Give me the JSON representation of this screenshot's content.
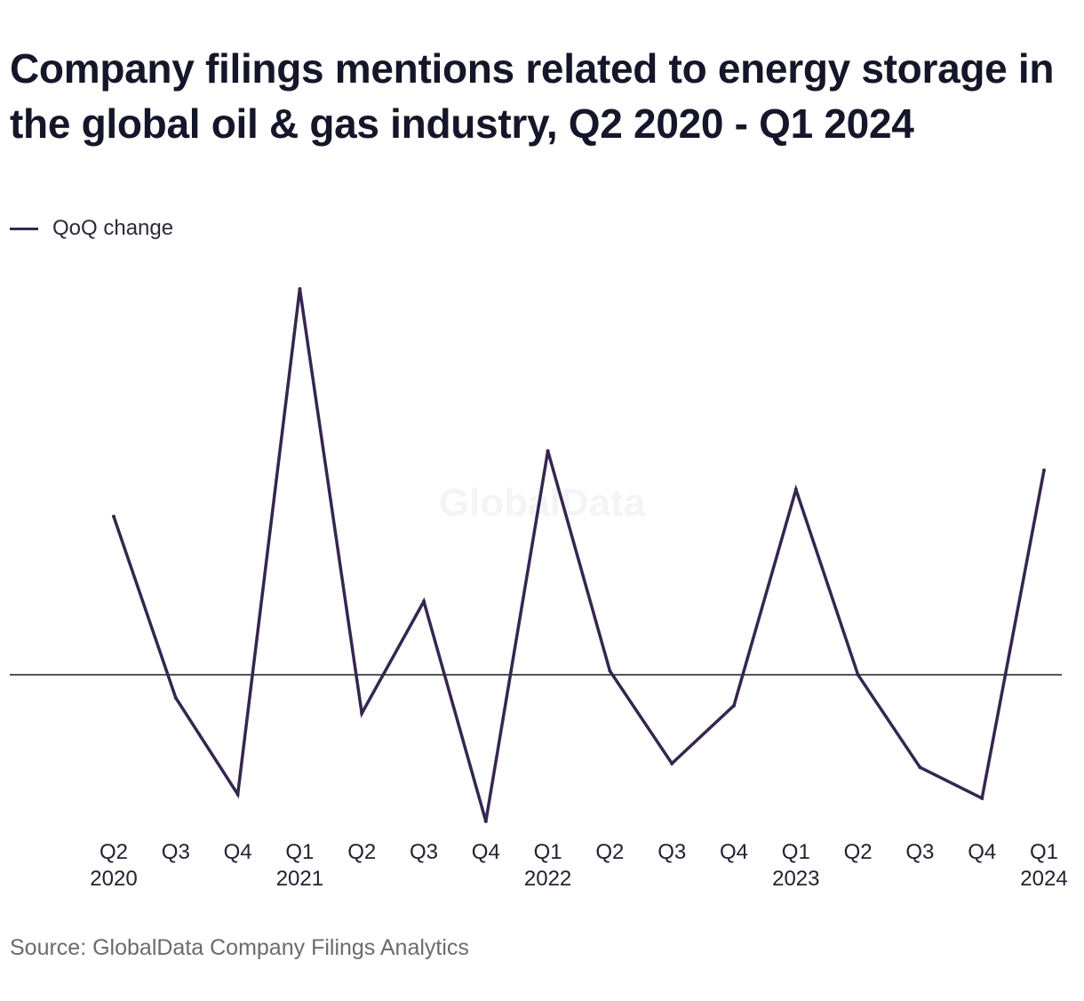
{
  "title": "Company filings mentions related to energy storage in the global oil & gas industry, Q2 2020 - Q1 2024",
  "legend": {
    "label": "QoQ change",
    "color": "#35264f"
  },
  "watermark": "GlobalData",
  "source": "Source: GlobalData Company Filings Analytics",
  "chart_data": {
    "type": "line",
    "title": "Company filings mentions related to energy storage in the global oil & gas industry, Q2 2020 - Q1 2024",
    "xlabel": "",
    "ylabel": "",
    "y_axis_labels_shown": false,
    "zero_line": true,
    "grid": false,
    "legend_position": "top-left",
    "categories": [
      {
        "q": "Q2",
        "year": "2020"
      },
      {
        "q": "Q3",
        "year": ""
      },
      {
        "q": "Q4",
        "year": ""
      },
      {
        "q": "Q1",
        "year": "2021"
      },
      {
        "q": "Q2",
        "year": ""
      },
      {
        "q": "Q3",
        "year": ""
      },
      {
        "q": "Q4",
        "year": ""
      },
      {
        "q": "Q1",
        "year": "2022"
      },
      {
        "q": "Q2",
        "year": ""
      },
      {
        "q": "Q3",
        "year": ""
      },
      {
        "q": "Q4",
        "year": ""
      },
      {
        "q": "Q1",
        "year": "2023"
      },
      {
        "q": "Q2",
        "year": ""
      },
      {
        "q": "Q3",
        "year": ""
      },
      {
        "q": "Q4",
        "year": ""
      },
      {
        "q": "Q1",
        "year": "2024"
      }
    ],
    "series": [
      {
        "name": "QoQ change",
        "color": "#35264f",
        "values": [
          0.41,
          -0.06,
          -0.31,
          1.0,
          -0.1,
          0.19,
          -0.38,
          0.58,
          0.01,
          -0.23,
          -0.08,
          0.48,
          0.0,
          -0.24,
          -0.32,
          0.53
        ]
      }
    ],
    "ylim": [
      -0.42,
      1.0
    ]
  }
}
